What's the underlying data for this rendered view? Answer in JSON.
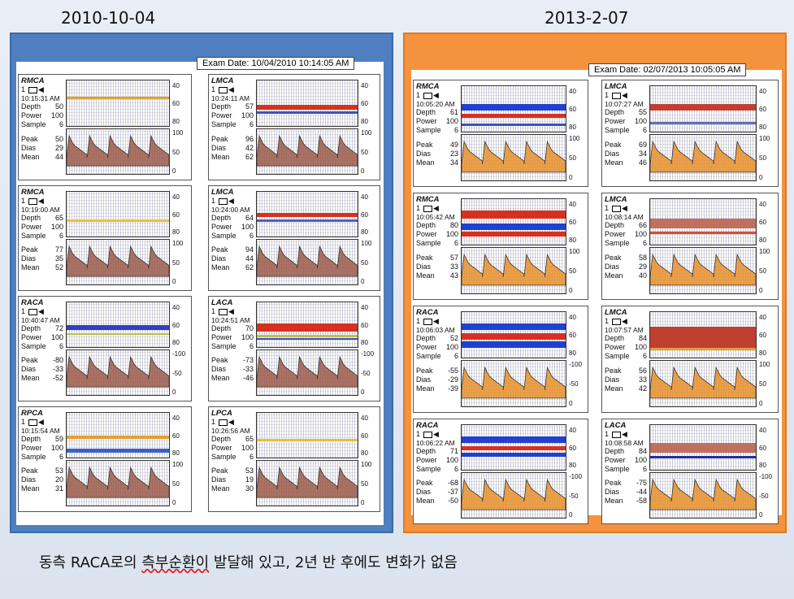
{
  "titles": {
    "left": "2010-10-04",
    "right": "2013-2-07"
  },
  "exam": {
    "left": "Exam Date: 10/04/2010 10:14:05 AM",
    "right": "Exam Date: 02/07/2013 10:05:05 AM"
  },
  "labels": {
    "depth": "Depth",
    "power": "Power",
    "sample": "Sample",
    "peak": "Peak",
    "dias": "Dias",
    "mean": "Mean",
    "probe": "1"
  },
  "scales": {
    "pos": [
      "40",
      "60",
      "80"
    ],
    "vel": [
      "100",
      "50",
      "0"
    ],
    "velneg": [
      "-100",
      "-50",
      "0"
    ]
  },
  "colors": {
    "left_panel": "#4f7fc0",
    "right_panel": "#f4923e",
    "wave": "#c8502a",
    "wave_old": "#9b5a4a"
  },
  "cards": {
    "l0": {
      "vessel": "RMCA",
      "time": "10:15:31 AM",
      "depth": "50",
      "power": "100",
      "sample": "6",
      "peak": "50",
      "dias": "29",
      "mean": "44"
    },
    "l1": {
      "vessel": "LMCA",
      "time": "10:24:11 AM",
      "depth": "57",
      "power": "100",
      "sample": "6",
      "peak": "96",
      "dias": "42",
      "mean": "62"
    },
    "l2": {
      "vessel": "RMCA",
      "time": "10:19:00 AM",
      "depth": "65",
      "power": "100",
      "sample": "6",
      "peak": "77",
      "dias": "35",
      "mean": "52"
    },
    "l3": {
      "vessel": "LMCA",
      "time": "10:24:00 AM",
      "depth": "64",
      "power": "100",
      "sample": "6",
      "peak": "94",
      "dias": "44",
      "mean": "62"
    },
    "l4": {
      "vessel": "RACA",
      "time": "10:40:47 AM",
      "depth": "72",
      "power": "100",
      "sample": "6",
      "peak": "-80",
      "dias": "-33",
      "mean": "-52"
    },
    "l5": {
      "vessel": "LACA",
      "time": "10:24:51 AM",
      "depth": "70",
      "power": "100",
      "sample": "6",
      "peak": "-73",
      "dias": "-33",
      "mean": "-46"
    },
    "l6": {
      "vessel": "RPCA",
      "time": "10:15:54 AM",
      "depth": "59",
      "power": "100",
      "sample": "6",
      "peak": "53",
      "dias": "20",
      "mean": "31"
    },
    "l7": {
      "vessel": "LPCA",
      "time": "10:26:56 AM",
      "depth": "65",
      "power": "100",
      "sample": "6",
      "peak": "53",
      "dias": "19",
      "mean": "30"
    },
    "r0": {
      "vessel": "RMCA",
      "time": "10:05:20 AM",
      "depth": "61",
      "power": "100",
      "sample": "6",
      "peak": "49",
      "dias": "23",
      "mean": "34"
    },
    "r1": {
      "vessel": "LMCA",
      "time": "10:07:27 AM",
      "depth": "55",
      "power": "100",
      "sample": "6",
      "peak": "69",
      "dias": "34",
      "mean": "46"
    },
    "r2": {
      "vessel": "RMCA",
      "time": "10:05:42 AM",
      "depth": "80",
      "power": "100",
      "sample": "6",
      "peak": "57",
      "dias": "33",
      "mean": "43"
    },
    "r3": {
      "vessel": "LMCA",
      "time": "10:08:14 AM",
      "depth": "66",
      "power": "100",
      "sample": "6",
      "peak": "58",
      "dias": "29",
      "mean": "40"
    },
    "r4": {
      "vessel": "RACA",
      "time": "10:06:03 AM",
      "depth": "52",
      "power": "100",
      "sample": "6",
      "peak": "-55",
      "dias": "-29",
      "mean": "-39"
    },
    "r5": {
      "vessel": "LMCA",
      "time": "10:07:57 AM",
      "depth": "84",
      "power": "100",
      "sample": "6",
      "peak": "56",
      "dias": "33",
      "mean": "42"
    },
    "r6": {
      "vessel": "RACA",
      "time": "10:06:22 AM",
      "depth": "71",
      "power": "100",
      "sample": "6",
      "peak": "-68",
      "dias": "-37",
      "mean": "-50"
    },
    "r7": {
      "vessel": "LACA",
      "time": "10:08:58 AM",
      "depth": "84",
      "power": "100",
      "sample": "6",
      "peak": "-75",
      "dias": "-44",
      "mean": "-58"
    }
  },
  "caption": {
    "pre": "동측 RACA로의 ",
    "sq": "측부순환이",
    "post": " 발달해 있고, 2년 반 후에도 변화가 없음"
  }
}
